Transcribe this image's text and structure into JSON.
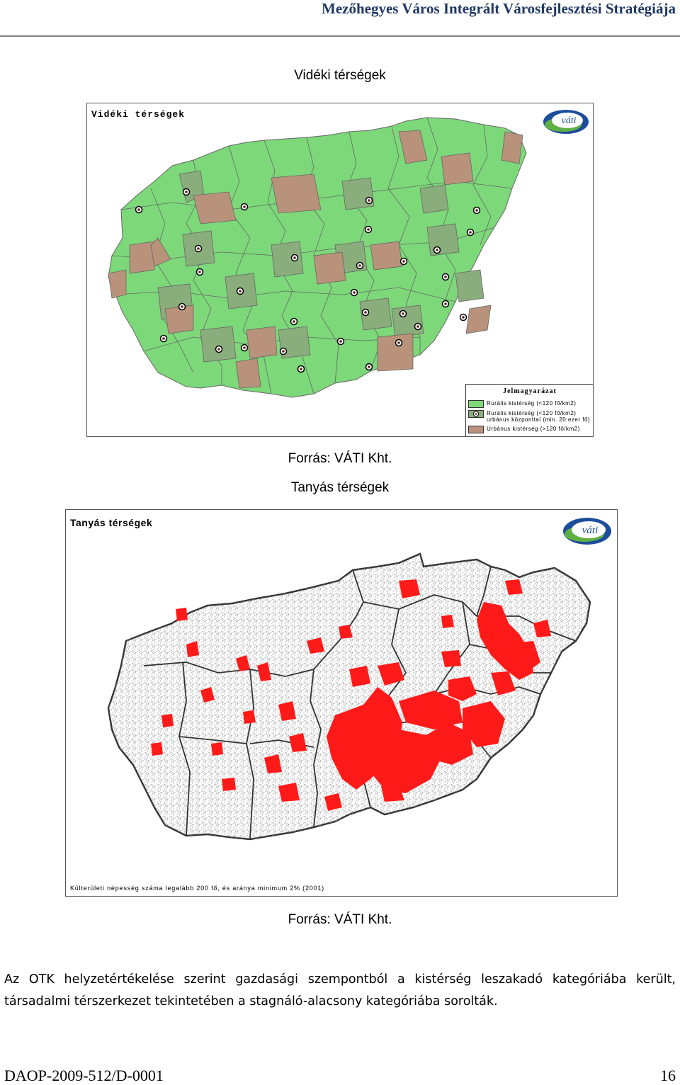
{
  "header": {
    "title": "Mezőhegyes Város Integrált Városfejlesztési Stratégiája"
  },
  "figure1": {
    "caption_top": "Vidéki térségek",
    "map_title": "Vidéki térségek",
    "logo_text": "váti",
    "legend": {
      "title": "Jelmagyarázat",
      "items": [
        {
          "label": "Rurális kistérség (<120 fő/km2)",
          "color": "#7dd87a"
        },
        {
          "label": "Rurális kistérség (<120 fő/km2)",
          "label2": "urbánus központtal (min. 20 ezer fő)",
          "color": "#8aad7c"
        },
        {
          "label": "Urbánus kistérség (>120 fő/km2)",
          "color": "#b8927a"
        }
      ]
    },
    "source": "Forrás: VÁTI Kht."
  },
  "figure2": {
    "caption_top": "Tanyás térségek",
    "map_title": "Tanyás térségek",
    "logo_text": "váti",
    "footnote": "Külterületi népesség száma legalább 200 fő, és aránya minimum 2% (2001)",
    "source": "Forrás: VÁTI Kht."
  },
  "body": {
    "paragraph": "Az OTK helyzetértékelése szerint gazdasági szempontból a kistérség leszakadó kategóriába került, társadalmi térszerkezet tekintetében a stagnáló-alacsony kategóriába sorolták."
  },
  "footer": {
    "doc_id": "DAOP-2009-512/D-0001",
    "page_number": "16"
  },
  "colors": {
    "rural": "#7dd87a",
    "rural_center": "#8aad7c",
    "urban": "#b8927a",
    "farm": "#ff1a1a",
    "logo_blue": "#1c4c9c",
    "logo_green": "#5fb043"
  }
}
